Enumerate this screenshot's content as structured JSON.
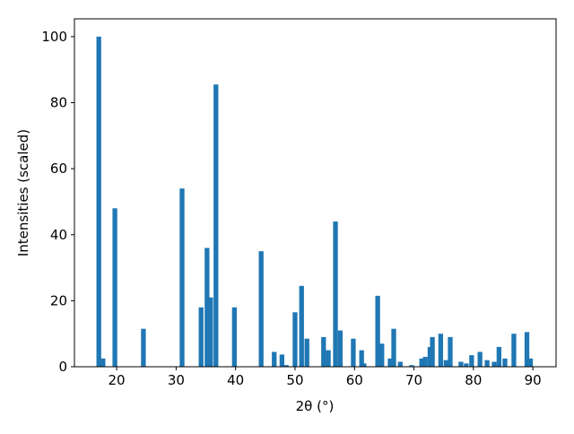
{
  "chart_data": {
    "type": "bar",
    "x_label": "2θ (°)",
    "y_label": "Intensities (scaled)",
    "color": "#1f77b4",
    "bar_width": 0.8,
    "x": [
      17.0,
      17.7,
      19.7,
      24.5,
      31.0,
      34.2,
      35.2,
      35.8,
      36.7,
      39.8,
      44.3,
      46.5,
      47.8,
      48.5,
      50.0,
      51.1,
      52.0,
      54.8,
      55.6,
      56.8,
      57.6,
      59.8,
      61.2,
      61.6,
      63.9,
      64.6,
      66.0,
      66.6,
      67.7,
      69.6,
      71.3,
      71.9,
      72.7,
      73.1,
      74.5,
      75.4,
      76.1,
      77.9,
      78.8,
      79.7,
      81.1,
      82.3,
      83.5,
      84.3,
      85.3,
      86.8,
      89.0,
      89.6
    ],
    "values": [
      100,
      2.5,
      48,
      11.5,
      54,
      18,
      36,
      21,
      85.5,
      18,
      35,
      4.5,
      3.7,
      0.5,
      16.5,
      24.5,
      8.5,
      9,
      5,
      44,
      11,
      8.5,
      5,
      1,
      21.5,
      7,
      2.5,
      11.5,
      1.5,
      0.5,
      2.5,
      3,
      6,
      9,
      10,
      2,
      9,
      1.5,
      1,
      3.5,
      4.5,
      2,
      1.5,
      6,
      2.5,
      10,
      10.5,
      2.5
    ],
    "xlim": [
      12.9,
      93.9
    ],
    "ylim": [
      0,
      105.4
    ],
    "xticks": [
      20,
      30,
      40,
      50,
      60,
      70,
      80,
      90
    ],
    "yticks": [
      0,
      20,
      40,
      60,
      80,
      100
    ]
  }
}
